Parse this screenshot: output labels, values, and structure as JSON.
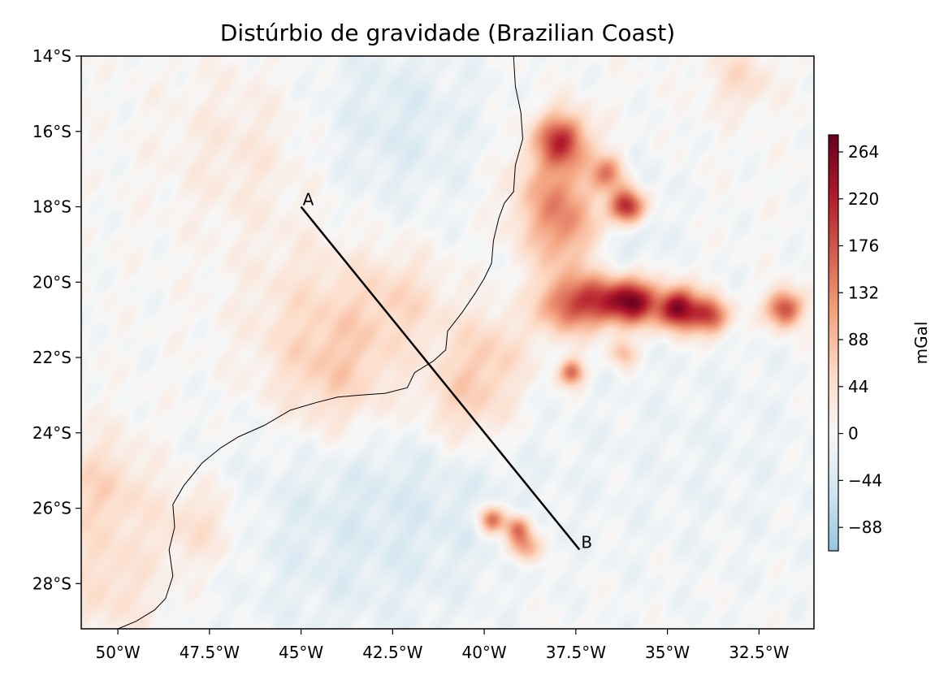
{
  "chart_data": {
    "type": "heatmap",
    "title": "Distúrbio de gravidade (Brazilian Coast)",
    "map": {
      "lon_range": [
        -51.0,
        -31.0
      ],
      "lat_range": [
        -29.2,
        -14.0
      ],
      "x_ticks": [
        {
          "value": -50.0,
          "label": "50°W"
        },
        {
          "value": -47.5,
          "label": "47.5°W"
        },
        {
          "value": -45.0,
          "label": "45°W"
        },
        {
          "value": -42.5,
          "label": "42.5°W"
        },
        {
          "value": -40.0,
          "label": "40°W"
        },
        {
          "value": -37.5,
          "label": "37.5°W"
        },
        {
          "value": -35.0,
          "label": "35°W"
        },
        {
          "value": -32.5,
          "label": "32.5°W"
        }
      ],
      "y_ticks": [
        {
          "value": -14,
          "label": "14°S"
        },
        {
          "value": -16,
          "label": "16°S"
        },
        {
          "value": -18,
          "label": "18°S"
        },
        {
          "value": -20,
          "label": "20°S"
        },
        {
          "value": -22,
          "label": "22°S"
        },
        {
          "value": -24,
          "label": "24°S"
        },
        {
          "value": -26,
          "label": "26°S"
        },
        {
          "value": -28,
          "label": "28°S"
        }
      ],
      "grid": false
    },
    "colorbar": {
      "label": "mGal",
      "colormap": "RdBu_r",
      "range": [
        -110,
        280
      ],
      "ticks": [
        {
          "value": -88,
          "label": "−88"
        },
        {
          "value": -44,
          "label": "−44"
        },
        {
          "value": 0,
          "label": "0"
        },
        {
          "value": 44,
          "label": "44"
        },
        {
          "value": 88,
          "label": "88"
        },
        {
          "value": 132,
          "label": "132"
        },
        {
          "value": 176,
          "label": "176"
        },
        {
          "value": 220,
          "label": "220"
        },
        {
          "value": 264,
          "label": "264"
        }
      ]
    },
    "profile_line": {
      "start": {
        "label": "A",
        "lon": -45.0,
        "lat": -18.0
      },
      "end": {
        "label": "B",
        "lon": -37.4,
        "lat": -27.1
      },
      "color": "#000000"
    },
    "coastline_lonlat": [
      [
        -39.2,
        -14.0
      ],
      [
        -39.15,
        -14.8
      ],
      [
        -39.0,
        -15.5
      ],
      [
        -38.95,
        -16.2
      ],
      [
        -39.15,
        -16.9
      ],
      [
        -39.2,
        -17.6
      ],
      [
        -39.45,
        -17.9
      ],
      [
        -39.6,
        -18.3
      ],
      [
        -39.75,
        -18.9
      ],
      [
        -39.8,
        -19.5
      ],
      [
        -40.0,
        -19.9
      ],
      [
        -40.25,
        -20.3
      ],
      [
        -40.6,
        -20.8
      ],
      [
        -41.0,
        -21.3
      ],
      [
        -41.05,
        -21.8
      ],
      [
        -41.4,
        -22.1
      ],
      [
        -41.9,
        -22.4
      ],
      [
        -42.1,
        -22.8
      ],
      [
        -42.7,
        -22.95
      ],
      [
        -43.4,
        -23.0
      ],
      [
        -44.0,
        -23.05
      ],
      [
        -44.6,
        -23.2
      ],
      [
        -45.3,
        -23.4
      ],
      [
        -46.0,
        -23.8
      ],
      [
        -46.7,
        -24.1
      ],
      [
        -47.2,
        -24.4
      ],
      [
        -47.7,
        -24.8
      ],
      [
        -48.2,
        -25.4
      ],
      [
        -48.5,
        -25.9
      ],
      [
        -48.45,
        -26.5
      ],
      [
        -48.6,
        -27.1
      ],
      [
        -48.5,
        -27.8
      ],
      [
        -48.7,
        -28.4
      ],
      [
        -49.0,
        -28.7
      ],
      [
        -49.5,
        -29.0
      ],
      [
        -50.0,
        -29.2
      ]
    ],
    "anomalies": [
      {
        "lon": -37.9,
        "lat": -16.2,
        "value": 180,
        "r": 0.5
      },
      {
        "lon": -36.6,
        "lat": -17.1,
        "value": 130,
        "r": 0.35
      },
      {
        "lon": -36.1,
        "lat": -18.0,
        "value": 260,
        "r": 0.35
      },
      {
        "lon": -37.9,
        "lat": -17.6,
        "value": 110,
        "r": 0.9
      },
      {
        "lon": -37.6,
        "lat": -18.8,
        "value": 120,
        "r": 0.8
      },
      {
        "lon": -37.8,
        "lat": -20.6,
        "value": 150,
        "r": 0.55
      },
      {
        "lon": -36.8,
        "lat": -20.5,
        "value": 170,
        "r": 0.5
      },
      {
        "lon": -35.9,
        "lat": -20.5,
        "value": 240,
        "r": 0.45
      },
      {
        "lon": -34.7,
        "lat": -20.7,
        "value": 270,
        "r": 0.4
      },
      {
        "lon": -33.8,
        "lat": -20.9,
        "value": 190,
        "r": 0.35
      },
      {
        "lon": -31.8,
        "lat": -20.7,
        "value": 200,
        "r": 0.35
      },
      {
        "lon": -37.6,
        "lat": -22.4,
        "value": 160,
        "r": 0.25
      },
      {
        "lon": -36.2,
        "lat": -21.9,
        "value": 90,
        "r": 0.25
      },
      {
        "lon": -39.8,
        "lat": -26.3,
        "value": 160,
        "r": 0.25
      },
      {
        "lon": -39.1,
        "lat": -26.5,
        "value": 140,
        "r": 0.25
      },
      {
        "lon": -38.9,
        "lat": -27.0,
        "value": 130,
        "r": 0.3
      },
      {
        "lon": -40.5,
        "lat": -23.2,
        "value": 70,
        "r": 0.9
      },
      {
        "lon": -39.8,
        "lat": -21.8,
        "value": 55,
        "r": 0.8
      },
      {
        "lon": -44.5,
        "lat": -20.8,
        "value": 40,
        "r": 1.5
      },
      {
        "lon": -44.0,
        "lat": -22.6,
        "value": 60,
        "r": 1.2
      },
      {
        "lon": -42.2,
        "lat": -20.5,
        "value": 45,
        "r": 0.9
      },
      {
        "lon": -50.5,
        "lat": -25.5,
        "value": 60,
        "r": 1.0
      },
      {
        "lon": -50.2,
        "lat": -28.0,
        "value": 45,
        "r": 1.0
      },
      {
        "lon": -47.8,
        "lat": -26.5,
        "value": 50,
        "r": 0.8
      },
      {
        "lon": -33.0,
        "lat": -14.6,
        "value": 50,
        "r": 0.6
      },
      {
        "lon": -46.5,
        "lat": -16.5,
        "value": 30,
        "r": 1.5
      },
      {
        "lon": -42.5,
        "lat": -15.8,
        "value": -35,
        "r": 1.8
      },
      {
        "lon": -36.8,
        "lat": -19.0,
        "value": -55,
        "r": 0.9
      },
      {
        "lon": -36.5,
        "lat": -17.8,
        "value": -45,
        "r": 0.9
      },
      {
        "lon": -44.0,
        "lat": -26.5,
        "value": -30,
        "r": 2.5
      },
      {
        "lon": -41.0,
        "lat": -25.5,
        "value": -20,
        "r": 2.0
      },
      {
        "lon": -34.0,
        "lat": -24.5,
        "value": -15,
        "r": 3.0
      }
    ]
  }
}
